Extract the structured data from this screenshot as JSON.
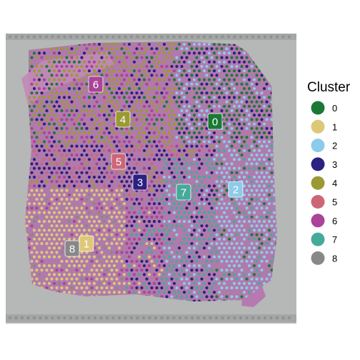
{
  "legend": {
    "title": "Cluster",
    "items": [
      {
        "label": "0",
        "color": "#1a7a35"
      },
      {
        "label": "1",
        "color": "#ddc878"
      },
      {
        "label": "2",
        "color": "#8ccbea"
      },
      {
        "label": "3",
        "color": "#2b2180"
      },
      {
        "label": "4",
        "color": "#9a9a35"
      },
      {
        "label": "5",
        "color": "#cc6677"
      },
      {
        "label": "6",
        "color": "#aa4499"
      },
      {
        "label": "7",
        "color": "#45aa99"
      },
      {
        "label": "8",
        "color": "#888888"
      }
    ]
  },
  "cluster_labels": [
    {
      "label": "0"
    },
    {
      "label": "1"
    },
    {
      "label": "2"
    },
    {
      "label": "3"
    },
    {
      "label": "4"
    },
    {
      "label": "5"
    },
    {
      "label": "6"
    },
    {
      "label": "7"
    },
    {
      "label": "8"
    }
  ]
}
